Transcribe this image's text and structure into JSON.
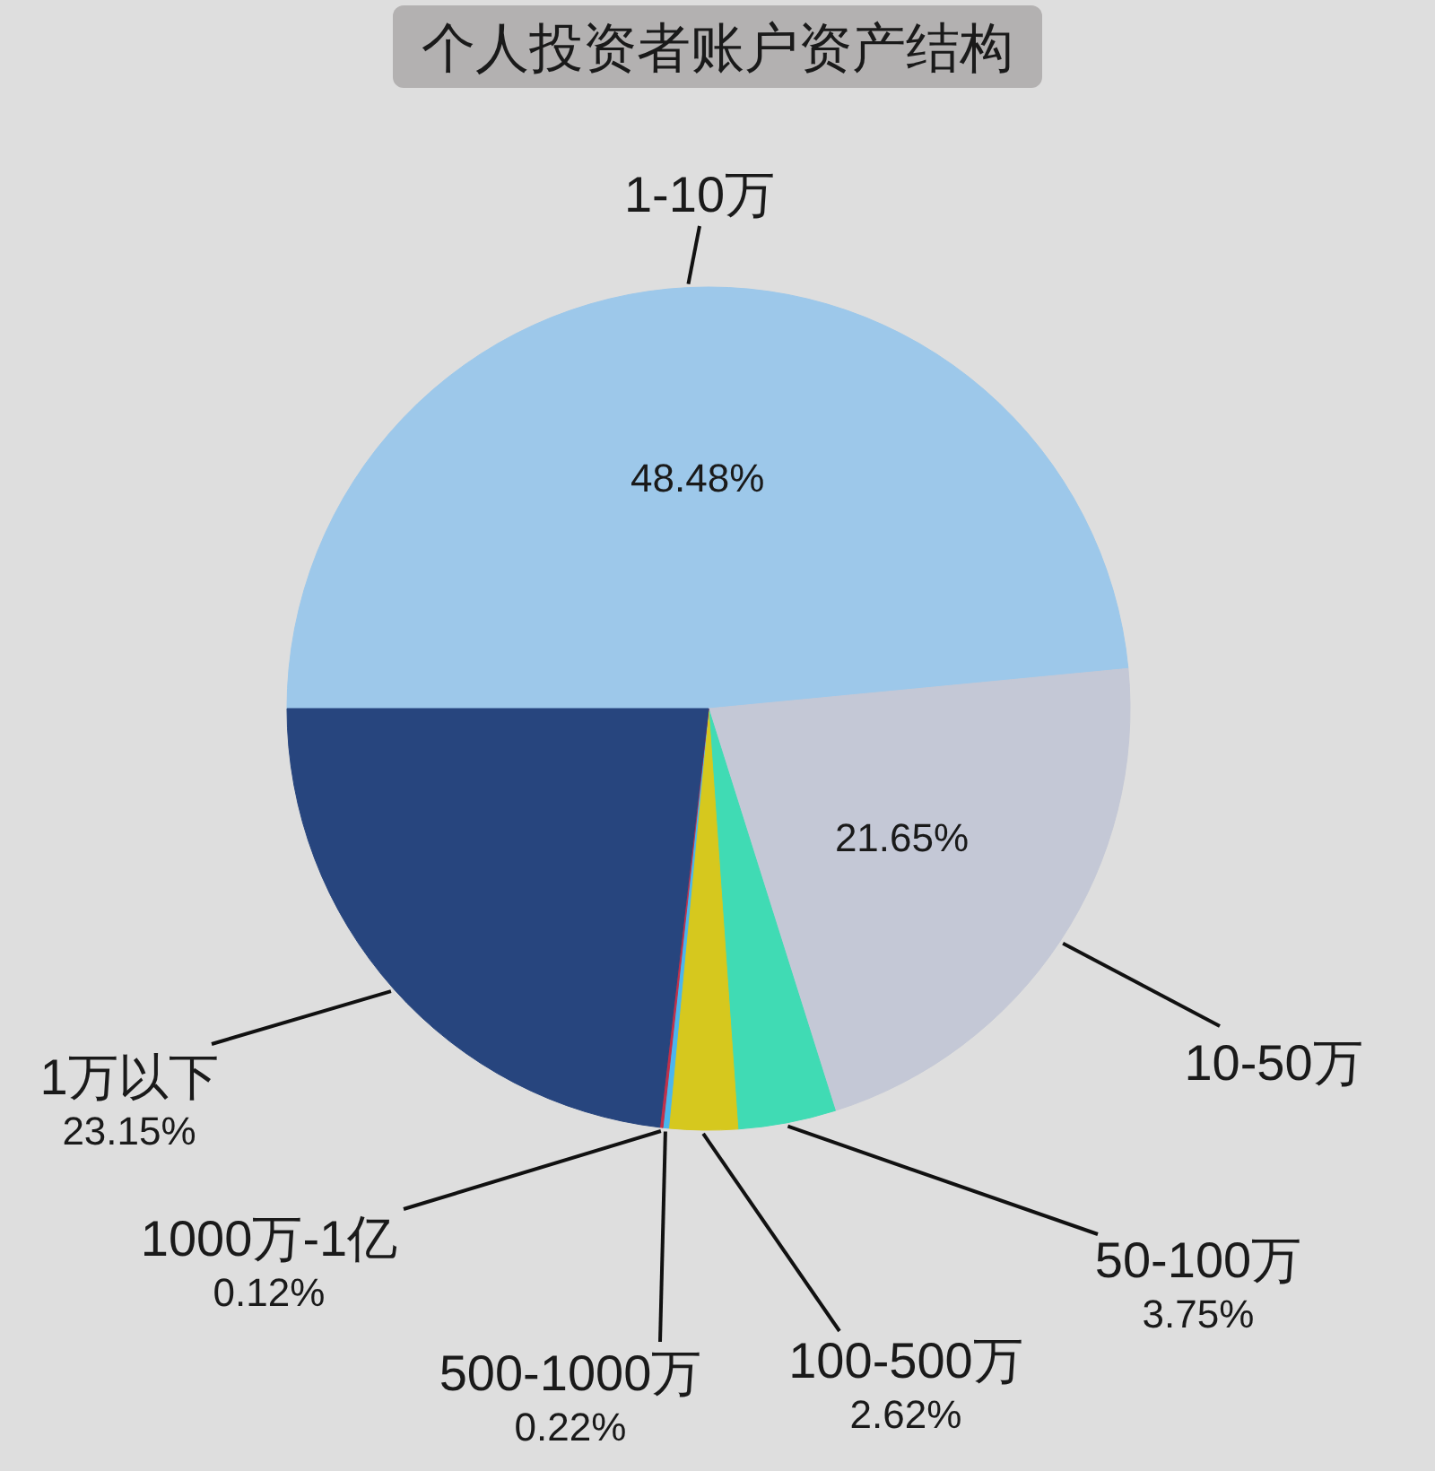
{
  "chart_data": {
    "type": "pie",
    "title": "个人投资者账户资产结构",
    "categories": [
      "1-10万",
      "10-50万",
      "50-100万",
      "100-500万",
      "500-1000万",
      "1000万-1亿",
      "1万以下"
    ],
    "values": [
      48.48,
      21.65,
      3.75,
      2.62,
      0.22,
      0.12,
      23.15
    ],
    "colors": [
      "#9dc8ea",
      "#c4c8d6",
      "#40dbb4",
      "#d6c81e",
      "#4ab6ee",
      "#c0304a",
      "#27457e"
    ],
    "value_labels": [
      "48.48%",
      "21.65%",
      "3.75%",
      "2.62%",
      "0.22%",
      "0.12%",
      "23.15%"
    ]
  }
}
